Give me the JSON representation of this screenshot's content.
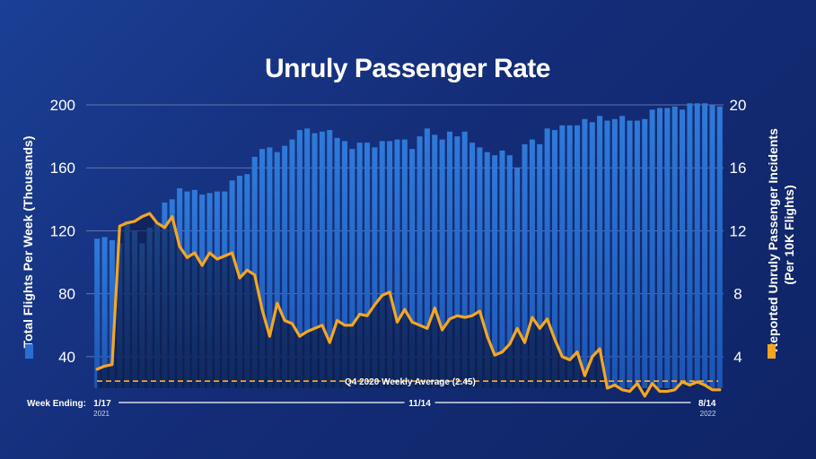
{
  "chart_data": {
    "type": "bar",
    "title": "Unruly Passenger Rate",
    "y_left_label": "Total Flights Per Week (Thousands)",
    "y_right_label_line1": "Reported Unruly Passenger Incidents",
    "y_right_label_line2": "(Per 10K Flights)",
    "y_left_ticks": [
      40,
      80,
      120,
      160,
      200
    ],
    "y_right_ticks": [
      4,
      8,
      12,
      16,
      20
    ],
    "y_left_range": [
      20,
      200
    ],
    "y_right_range": [
      2,
      20
    ],
    "week_ending_label": "Week Ending:",
    "x_labels": [
      {
        "index": 0,
        "label": "1/17",
        "sub": "2021"
      },
      {
        "index": 43,
        "label": "11/14",
        "sub": ""
      },
      {
        "index": 82,
        "label": "8/14",
        "sub": "2022"
      }
    ],
    "reference_line": {
      "label": "Q4 2020 Weekly Average (2.45)",
      "value": 2.45
    },
    "series": [
      {
        "name": "Total Flights Per Week (Thousands)",
        "type": "bar",
        "color": "#2a6fcf",
        "values": [
          115,
          116,
          114,
          112,
          126,
          120,
          112,
          122,
          125,
          138,
          140,
          147,
          145,
          146,
          143,
          144,
          145,
          145,
          152,
          155,
          156,
          167,
          172,
          173,
          170,
          174,
          178,
          184,
          185,
          182,
          183,
          184,
          179,
          177,
          172,
          176,
          176,
          173,
          177,
          177,
          178,
          178,
          172,
          180,
          185,
          181,
          178,
          183,
          180,
          183,
          176,
          173,
          170,
          168,
          171,
          168,
          160,
          175,
          178,
          175,
          185,
          184,
          187,
          187,
          187,
          191,
          189,
          193,
          190,
          191,
          193,
          190,
          190,
          191,
          197,
          198,
          198,
          199,
          197,
          201,
          201,
          201,
          200,
          199
        ]
      },
      {
        "name": "Reported Unruly Passenger Incidents (Per 10K Flights)",
        "type": "line",
        "color": "#f5a623",
        "values": [
          3.2,
          3.4,
          3.5,
          12.3,
          12.5,
          12.6,
          12.9,
          13.1,
          12.5,
          12.2,
          12.9,
          11.0,
          10.3,
          10.6,
          9.8,
          10.6,
          10.2,
          10.4,
          10.6,
          9.0,
          9.5,
          9.2,
          7.0,
          5.3,
          7.4,
          6.3,
          6.1,
          5.3,
          5.6,
          5.8,
          6.0,
          4.9,
          6.3,
          6.0,
          6.0,
          6.7,
          6.6,
          7.3,
          7.9,
          8.1,
          6.2,
          7.0,
          6.2,
          6.0,
          5.8,
          7.1,
          5.7,
          6.4,
          6.6,
          6.5,
          6.6,
          6.9,
          5.3,
          4.1,
          4.3,
          4.8,
          5.8,
          4.9,
          6.5,
          5.8,
          6.4,
          5.1,
          4.0,
          3.8,
          4.3,
          2.8,
          4.0,
          4.5,
          2.0,
          2.2,
          1.9,
          1.8,
          2.3,
          1.5,
          2.3,
          1.8,
          1.8,
          1.9,
          2.4,
          2.2,
          2.4,
          2.2,
          1.9,
          1.9
        ]
      }
    ],
    "legend": [
      {
        "name": "Total Flights Per Week (Thousands)",
        "color": "#2a6fcf"
      },
      {
        "name": "Reported Unruly Passenger Incidents (Per 10K Flights)",
        "color": "#f5a623"
      }
    ],
    "grid": true
  },
  "colors": {
    "background": "#152f7a",
    "bar": "#2a6fcf",
    "line": "#f5a623",
    "grid": "#7d93c9",
    "reference": "#f5a623"
  }
}
